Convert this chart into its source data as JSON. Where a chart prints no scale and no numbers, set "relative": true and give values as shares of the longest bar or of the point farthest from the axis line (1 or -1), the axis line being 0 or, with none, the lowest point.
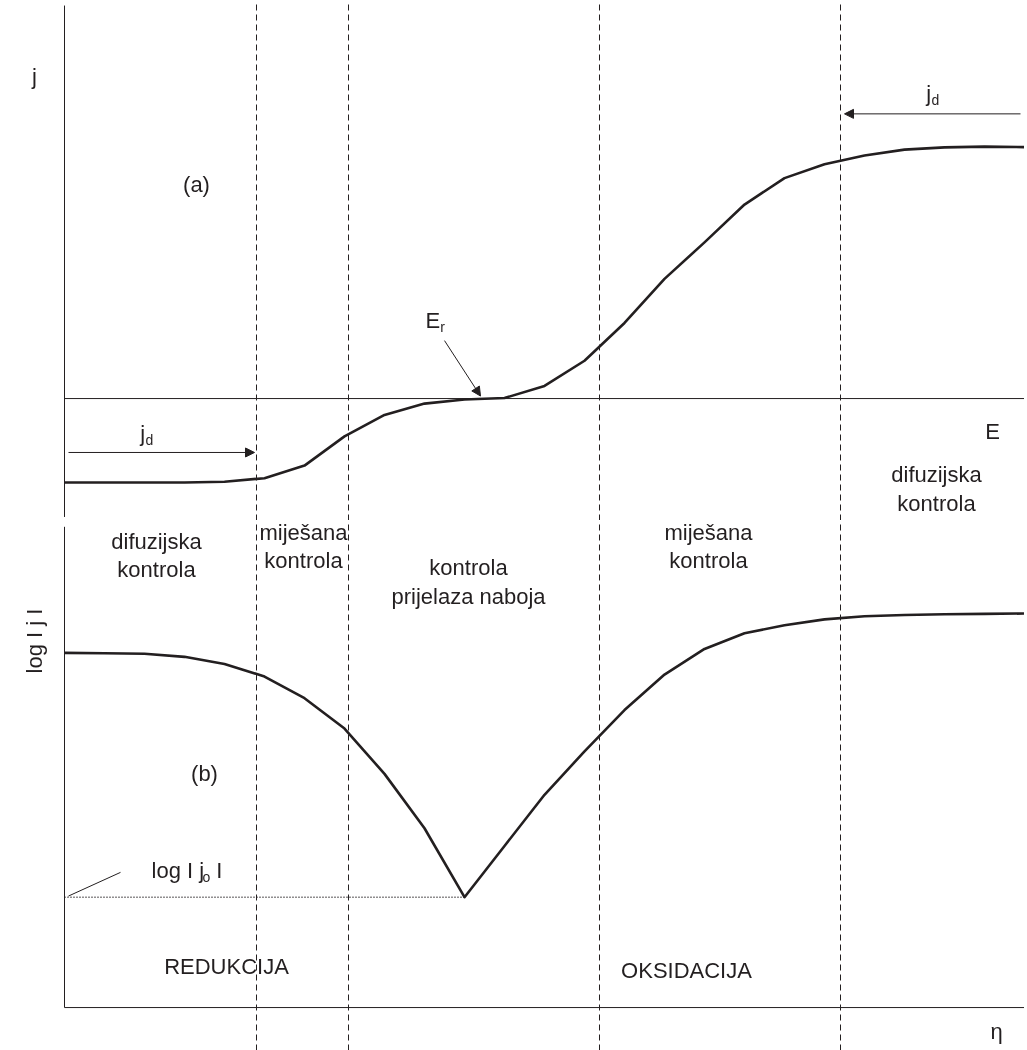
{
  "chart_data": [
    {
      "type": "line",
      "relative": true,
      "categories": [
        null,
        null,
        null,
        null,
        null,
        null,
        null,
        null,
        null,
        null,
        null,
        null,
        null,
        null,
        null,
        null,
        null,
        null,
        null,
        null,
        null,
        null,
        null,
        null,
        null
      ],
      "ylabel": "j",
      "xlabel": "E",
      "line_style": "solid",
      "marker": "none",
      "series": [
        {
          "color": "#231f20",
          "values": [
            -0.333,
            -0.333,
            -0.333,
            -0.333,
            -0.33,
            -0.316,
            -0.266,
            -0.15,
            -0.065,
            -0.02,
            -0.004,
            0.002,
            0.05,
            0.15,
            0.3,
            0.475,
            0.62,
            0.77,
            0.875,
            0.93,
            0.965,
            0.988,
            0.997,
            1.0,
            0.998
          ]
        }
      ],
      "annotations": [
        "(a)",
        "E$_{r}$",
        "j$_{d}$",
        "j$_{d}$",
        "difuzijska\nkontrola"
      ]
    },
    {
      "type": "line",
      "relative": true,
      "categories": [
        null,
        null,
        null,
        null,
        null,
        null,
        null,
        null,
        null,
        null,
        null,
        null,
        null,
        null,
        null,
        null,
        null,
        null,
        null,
        null,
        null,
        null,
        null,
        null,
        null
      ],
      "ylabel": "log I j I",
      "xlabel": "η",
      "line_style": "solid",
      "marker": "none",
      "series": [
        {
          "color": "#231f20",
          "values": [
            0.9,
            0.899,
            0.898,
            0.89,
            0.872,
            0.84,
            0.785,
            0.708,
            0.593,
            0.455,
            0.28,
            0.41,
            0.54,
            0.65,
            0.755,
            0.845,
            0.91,
            0.95,
            0.97,
            0.985,
            0.993,
            0.996,
            0.998,
            0.999,
            1.0
          ]
        }
      ],
      "annotations": [
        "(b)",
        "difuzijska\nkontrola",
        "miješana\nkontrola",
        "kontrola\nprijelaza naboja",
        "miješana\nkontrola",
        "REDUKCIJA",
        "OKSIDACIJA"
      ],
      "ref_lines": [
        {
          "axis": "y",
          "value": 0.28,
          "label": "log I j$_{o}$ I",
          "line_style": "dotted",
          "color": "#231f20"
        }
      ]
    }
  ]
}
